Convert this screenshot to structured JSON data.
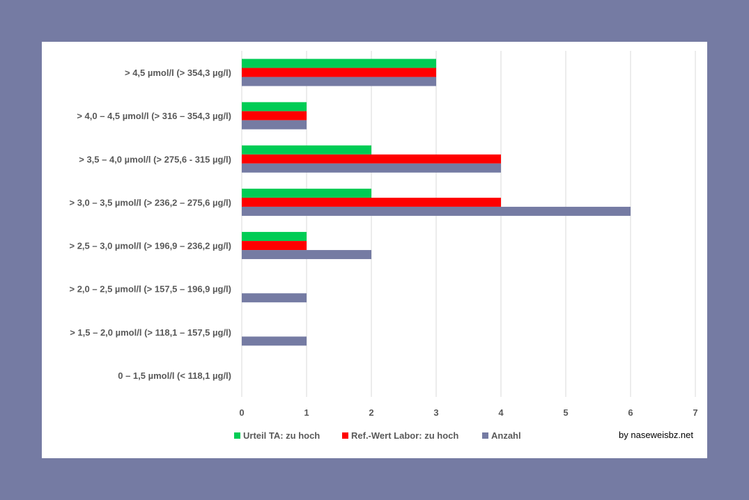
{
  "chart_data": {
    "type": "bar",
    "orientation": "horizontal",
    "categories": [
      "> 4,5 µmol/l (> 354,3 µg/l)",
      "> 4,0 – 4,5 µmol/l (> 316 – 354,3 µg/l)",
      "> 3,5 – 4,0 µmol/l (> 275,6 - 315 µg/l)",
      "> 3,0 – 3,5 µmol/l (> 236,2 – 275,6 µg/l)",
      "> 2,5 – 3,0 µmol/l (> 196,9 – 236,2 µg/l)",
      "> 2,0 – 2,5 µmol/l (> 157,5 – 196,9 µg/l)",
      "> 1,5 – 2,0 µmol/l (> 118,1 – 157,5 µg/l)",
      "0 – 1,5 µmol/l (< 118,1 µg/l)"
    ],
    "series": [
      {
        "name": "Urteil TA: zu hoch",
        "color": "#00cc55",
        "values": [
          3,
          1,
          2,
          2,
          1,
          0,
          0,
          0
        ]
      },
      {
        "name": "Ref.-Wert Labor: zu hoch",
        "color": "#ff0000",
        "values": [
          3,
          1,
          4,
          4,
          1,
          0,
          0,
          0
        ]
      },
      {
        "name": "Anzahl",
        "color": "#757ba3",
        "values": [
          3,
          1,
          4,
          6,
          2,
          1,
          1,
          0
        ]
      }
    ],
    "xlim": [
      0,
      7
    ],
    "xticks": [
      "0",
      "1",
      "2",
      "3",
      "4",
      "5",
      "6",
      "7"
    ],
    "grid": "vertical",
    "legend_position": "bottom",
    "title": "",
    "xlabel": "",
    "ylabel": ""
  },
  "credit": "by naseweisbz.net",
  "colors": {
    "background": "#757ba3",
    "panel": "#ffffff",
    "gridline": "#d9d9d9",
    "text": "#595959"
  }
}
